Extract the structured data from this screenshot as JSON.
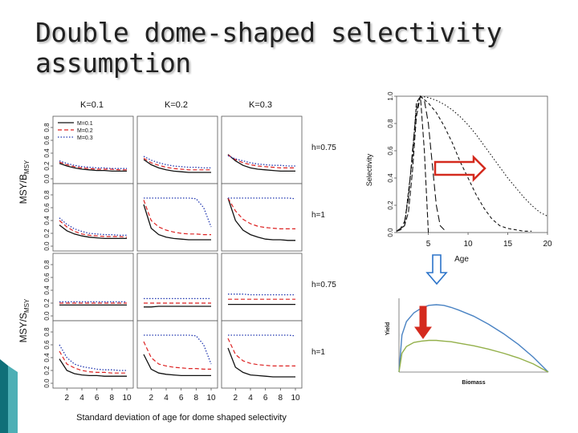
{
  "slide": {
    "title_line1": "Double dome-shaped selectivity",
    "title_line2": "assumption"
  },
  "colors": {
    "accent_teal": "#0f6f78",
    "arrow_red": "#d42a1e",
    "arrow_blue": "#2b73c9",
    "curve_blue": "#4a83c3",
    "curve_green": "#93b04a"
  },
  "chart_data": [
    {
      "type": "line",
      "layout": "small-multiples 4x3",
      "col_headers": [
        "K=0.1",
        "K=0.2",
        "K=0.3"
      ],
      "row_labels": [
        "h=0.75",
        "h=1",
        "h=0.75",
        "h=1"
      ],
      "ylabel_top": "MSY/B",
      "ylabel_top_sub": "MSY",
      "ylabel_bottom": "MSY/S",
      "ylabel_bottom_sub": "MSY",
      "xlabel": "Standard deviation of age for dome shaped selectivity",
      "xticks": [
        "2",
        "4",
        "6",
        "8",
        "10"
      ],
      "yticks": [
        "0.0",
        "0.2",
        "0.4",
        "0.6",
        "0.8"
      ],
      "x": [
        1,
        2,
        3,
        4,
        5,
        6,
        7,
        8,
        9,
        10
      ],
      "ylim": [
        0,
        0.9
      ],
      "legend": [
        "M=0.1",
        "M=0.2",
        "M=0.3"
      ],
      "panels": [
        {
          "row": 0,
          "col": 0,
          "series": [
            {
              "name": "M=0.1",
              "values": [
                0.24,
                0.2,
                0.17,
                0.15,
                0.14,
                0.13,
                0.13,
                0.12,
                0.12,
                0.12
              ]
            },
            {
              "name": "M=0.2",
              "values": [
                0.26,
                0.22,
                0.19,
                0.17,
                0.16,
                0.15,
                0.15,
                0.15,
                0.14,
                0.14
              ]
            },
            {
              "name": "M=0.3",
              "values": [
                0.28,
                0.24,
                0.21,
                0.19,
                0.18,
                0.17,
                0.17,
                0.16,
                0.16,
                0.16
              ]
            }
          ]
        },
        {
          "row": 0,
          "col": 1,
          "series": [
            {
              "name": "M=0.1",
              "values": [
                0.3,
                0.22,
                0.17,
                0.14,
                0.12,
                0.11,
                0.1,
                0.1,
                0.1,
                0.1
              ]
            },
            {
              "name": "M=0.2",
              "values": [
                0.32,
                0.25,
                0.21,
                0.18,
                0.16,
                0.15,
                0.14,
                0.14,
                0.14,
                0.14
              ]
            },
            {
              "name": "M=0.3",
              "values": [
                0.35,
                0.29,
                0.25,
                0.22,
                0.2,
                0.19,
                0.18,
                0.18,
                0.17,
                0.17
              ]
            }
          ]
        },
        {
          "row": 0,
          "col": 2,
          "series": [
            {
              "name": "M=0.1",
              "values": [
                0.38,
                0.28,
                0.21,
                0.17,
                0.15,
                0.14,
                0.13,
                0.12,
                0.12,
                0.12
              ]
            },
            {
              "name": "M=0.2",
              "values": [
                0.37,
                0.3,
                0.25,
                0.22,
                0.2,
                0.19,
                0.18,
                0.17,
                0.17,
                0.17
              ]
            },
            {
              "name": "M=0.3",
              "values": [
                0.36,
                0.31,
                0.28,
                0.25,
                0.23,
                0.22,
                0.21,
                0.21,
                0.2,
                0.2
              ]
            }
          ]
        },
        {
          "row": 1,
          "col": 0,
          "series": [
            {
              "name": "M=0.1",
              "values": [
                0.33,
                0.24,
                0.19,
                0.16,
                0.14,
                0.13,
                0.12,
                0.12,
                0.12,
                0.12
              ]
            },
            {
              "name": "M=0.2",
              "values": [
                0.4,
                0.3,
                0.23,
                0.19,
                0.17,
                0.16,
                0.15,
                0.15,
                0.15,
                0.14
              ]
            },
            {
              "name": "M=0.3",
              "values": [
                0.44,
                0.34,
                0.27,
                0.23,
                0.2,
                0.19,
                0.18,
                0.18,
                0.17,
                0.17
              ]
            }
          ]
        },
        {
          "row": 1,
          "col": 1,
          "series": [
            {
              "name": "M=0.1",
              "values": [
                0.65,
                0.28,
                0.18,
                0.14,
                0.12,
                0.11,
                0.1,
                0.1,
                0.1,
                0.1
              ]
            },
            {
              "name": "M=0.2",
              "values": [
                0.72,
                0.4,
                0.3,
                0.25,
                0.22,
                0.2,
                0.19,
                0.19,
                0.18,
                0.18
              ]
            },
            {
              "name": "M=0.3",
              "values": [
                0.75,
                0.75,
                0.75,
                0.75,
                0.75,
                0.75,
                0.75,
                0.74,
                0.6,
                0.3
              ]
            }
          ]
        },
        {
          "row": 1,
          "col": 2,
          "series": [
            {
              "name": "M=0.1",
              "values": [
                0.75,
                0.4,
                0.25,
                0.18,
                0.14,
                0.11,
                0.1,
                0.1,
                0.09,
                0.09
              ]
            },
            {
              "name": "M=0.2",
              "values": [
                0.75,
                0.55,
                0.42,
                0.35,
                0.31,
                0.29,
                0.28,
                0.27,
                0.27,
                0.27
              ]
            },
            {
              "name": "M=0.3",
              "values": [
                0.75,
                0.75,
                0.75,
                0.75,
                0.75,
                0.75,
                0.75,
                0.75,
                0.75,
                0.74
              ]
            }
          ]
        },
        {
          "row": 2,
          "col": 0,
          "series": [
            {
              "name": "M=0.1",
              "values": [
                0.17,
                0.17,
                0.17,
                0.17,
                0.17,
                0.17,
                0.17,
                0.17,
                0.17,
                0.17
              ]
            },
            {
              "name": "M=0.2",
              "values": [
                0.2,
                0.2,
                0.2,
                0.2,
                0.2,
                0.2,
                0.2,
                0.2,
                0.2,
                0.2
              ]
            },
            {
              "name": "M=0.3",
              "values": [
                0.22,
                0.22,
                0.22,
                0.22,
                0.22,
                0.22,
                0.22,
                0.22,
                0.22,
                0.22
              ]
            }
          ]
        },
        {
          "row": 2,
          "col": 1,
          "series": [
            {
              "name": "M=0.1",
              "values": [
                0.14,
                0.14,
                0.15,
                0.15,
                0.15,
                0.15,
                0.15,
                0.15,
                0.15,
                0.15
              ]
            },
            {
              "name": "M=0.2",
              "values": [
                0.2,
                0.2,
                0.2,
                0.2,
                0.2,
                0.2,
                0.2,
                0.2,
                0.2,
                0.2
              ]
            },
            {
              "name": "M=0.3",
              "values": [
                0.27,
                0.27,
                0.27,
                0.27,
                0.27,
                0.27,
                0.27,
                0.27,
                0.27,
                0.27
              ]
            }
          ]
        },
        {
          "row": 2,
          "col": 2,
          "series": [
            {
              "name": "M=0.1",
              "values": [
                0.18,
                0.18,
                0.18,
                0.18,
                0.18,
                0.18,
                0.18,
                0.18,
                0.18,
                0.18
              ]
            },
            {
              "name": "M=0.2",
              "values": [
                0.26,
                0.26,
                0.26,
                0.26,
                0.26,
                0.26,
                0.26,
                0.26,
                0.26,
                0.26
              ]
            },
            {
              "name": "M=0.3",
              "values": [
                0.34,
                0.34,
                0.34,
                0.33,
                0.33,
                0.33,
                0.33,
                0.33,
                0.33,
                0.33
              ]
            }
          ]
        },
        {
          "row": 3,
          "col": 0,
          "series": [
            {
              "name": "M=0.1",
              "values": [
                0.38,
                0.2,
                0.15,
                0.13,
                0.12,
                0.12,
                0.11,
                0.11,
                0.11,
                0.11
              ]
            },
            {
              "name": "M=0.2",
              "values": [
                0.5,
                0.3,
                0.24,
                0.2,
                0.18,
                0.17,
                0.17,
                0.16,
                0.16,
                0.16
              ]
            },
            {
              "name": "M=0.3",
              "values": [
                0.6,
                0.4,
                0.3,
                0.26,
                0.24,
                0.22,
                0.21,
                0.21,
                0.2,
                0.2
              ]
            }
          ]
        },
        {
          "row": 3,
          "col": 1,
          "series": [
            {
              "name": "M=0.1",
              "values": [
                0.45,
                0.22,
                0.16,
                0.14,
                0.13,
                0.12,
                0.12,
                0.12,
                0.12,
                0.12
              ]
            },
            {
              "name": "M=0.2",
              "values": [
                0.65,
                0.4,
                0.3,
                0.27,
                0.25,
                0.24,
                0.23,
                0.23,
                0.22,
                0.22
              ]
            },
            {
              "name": "M=0.3",
              "values": [
                0.75,
                0.75,
                0.75,
                0.75,
                0.75,
                0.75,
                0.75,
                0.74,
                0.6,
                0.3
              ]
            }
          ]
        },
        {
          "row": 3,
          "col": 2,
          "series": [
            {
              "name": "M=0.1",
              "values": [
                0.55,
                0.25,
                0.17,
                0.13,
                0.12,
                0.11,
                0.1,
                0.1,
                0.1,
                0.1
              ]
            },
            {
              "name": "M=0.2",
              "values": [
                0.7,
                0.45,
                0.35,
                0.31,
                0.29,
                0.28,
                0.27,
                0.27,
                0.27,
                0.27
              ]
            },
            {
              "name": "M=0.3",
              "values": [
                0.75,
                0.75,
                0.75,
                0.75,
                0.75,
                0.75,
                0.75,
                0.75,
                0.75,
                0.74
              ]
            }
          ]
        }
      ]
    },
    {
      "type": "line",
      "ylabel": "Selectivity",
      "xlabel": "Age",
      "xticks": [
        "5",
        "10",
        "15",
        "20"
      ],
      "yticks": [
        "0.0",
        "0.2",
        "0.4",
        "0.6",
        "0.8",
        "1.0"
      ],
      "xlim": [
        1,
        20
      ],
      "ylim": [
        0,
        1
      ],
      "series": [
        {
          "x": [
            1,
            1.5,
            2,
            2.5,
            3,
            3.5,
            4,
            4.5,
            5
          ],
          "values": [
            0.01,
            0.02,
            0.05,
            0.15,
            0.45,
            0.85,
            1.0,
            0.6,
            0.0
          ]
        },
        {
          "x": [
            1,
            1.5,
            2,
            2.5,
            3,
            3.5,
            4,
            4.5,
            5,
            5.5,
            6,
            6.5,
            7
          ],
          "values": [
            0.01,
            0.03,
            0.08,
            0.25,
            0.6,
            0.9,
            1.0,
            0.97,
            0.8,
            0.5,
            0.2,
            0.05,
            0.02
          ]
        },
        {
          "x": [
            1,
            2,
            3,
            3.5,
            4,
            5,
            6,
            7,
            8,
            9,
            10,
            11,
            12,
            13,
            14,
            15,
            16,
            17,
            18
          ],
          "values": [
            0.01,
            0.05,
            0.55,
            0.95,
            1.0,
            0.95,
            0.88,
            0.78,
            0.66,
            0.52,
            0.4,
            0.28,
            0.18,
            0.1,
            0.05,
            0.03,
            0.02,
            0.01,
            0.01
          ]
        },
        {
          "x": [
            1,
            2,
            3,
            3.5,
            4,
            5,
            6,
            7,
            8,
            9,
            10,
            11,
            12,
            13,
            14,
            15,
            16,
            17,
            18,
            19,
            20
          ],
          "values": [
            0.01,
            0.05,
            0.55,
            0.95,
            1.0,
            0.99,
            0.97,
            0.94,
            0.9,
            0.85,
            0.79,
            0.72,
            0.64,
            0.56,
            0.48,
            0.4,
            0.33,
            0.26,
            0.2,
            0.15,
            0.12
          ]
        }
      ]
    },
    {
      "type": "line",
      "xlabel": "Biomass",
      "ylabel": "Yield",
      "series": [
        {
          "x": [
            0,
            0.02,
            0.05,
            0.1,
            0.15,
            0.2,
            0.25,
            0.3,
            0.35,
            0.4,
            0.5,
            0.6,
            0.7,
            0.8,
            0.9,
            0.95,
            1.0
          ],
          "values": [
            0,
            0.55,
            0.75,
            0.88,
            0.95,
            0.99,
            1.0,
            0.99,
            0.96,
            0.92,
            0.83,
            0.71,
            0.57,
            0.41,
            0.22,
            0.11,
            0
          ]
        },
        {
          "x": [
            0,
            0.02,
            0.05,
            0.1,
            0.15,
            0.2,
            0.25,
            0.3,
            0.35,
            0.4,
            0.5,
            0.6,
            0.7,
            0.8,
            0.9,
            0.95,
            1.0
          ],
          "values": [
            0,
            0.28,
            0.38,
            0.44,
            0.46,
            0.47,
            0.47,
            0.46,
            0.45,
            0.43,
            0.39,
            0.34,
            0.28,
            0.21,
            0.12,
            0.06,
            0
          ]
        }
      ]
    }
  ]
}
